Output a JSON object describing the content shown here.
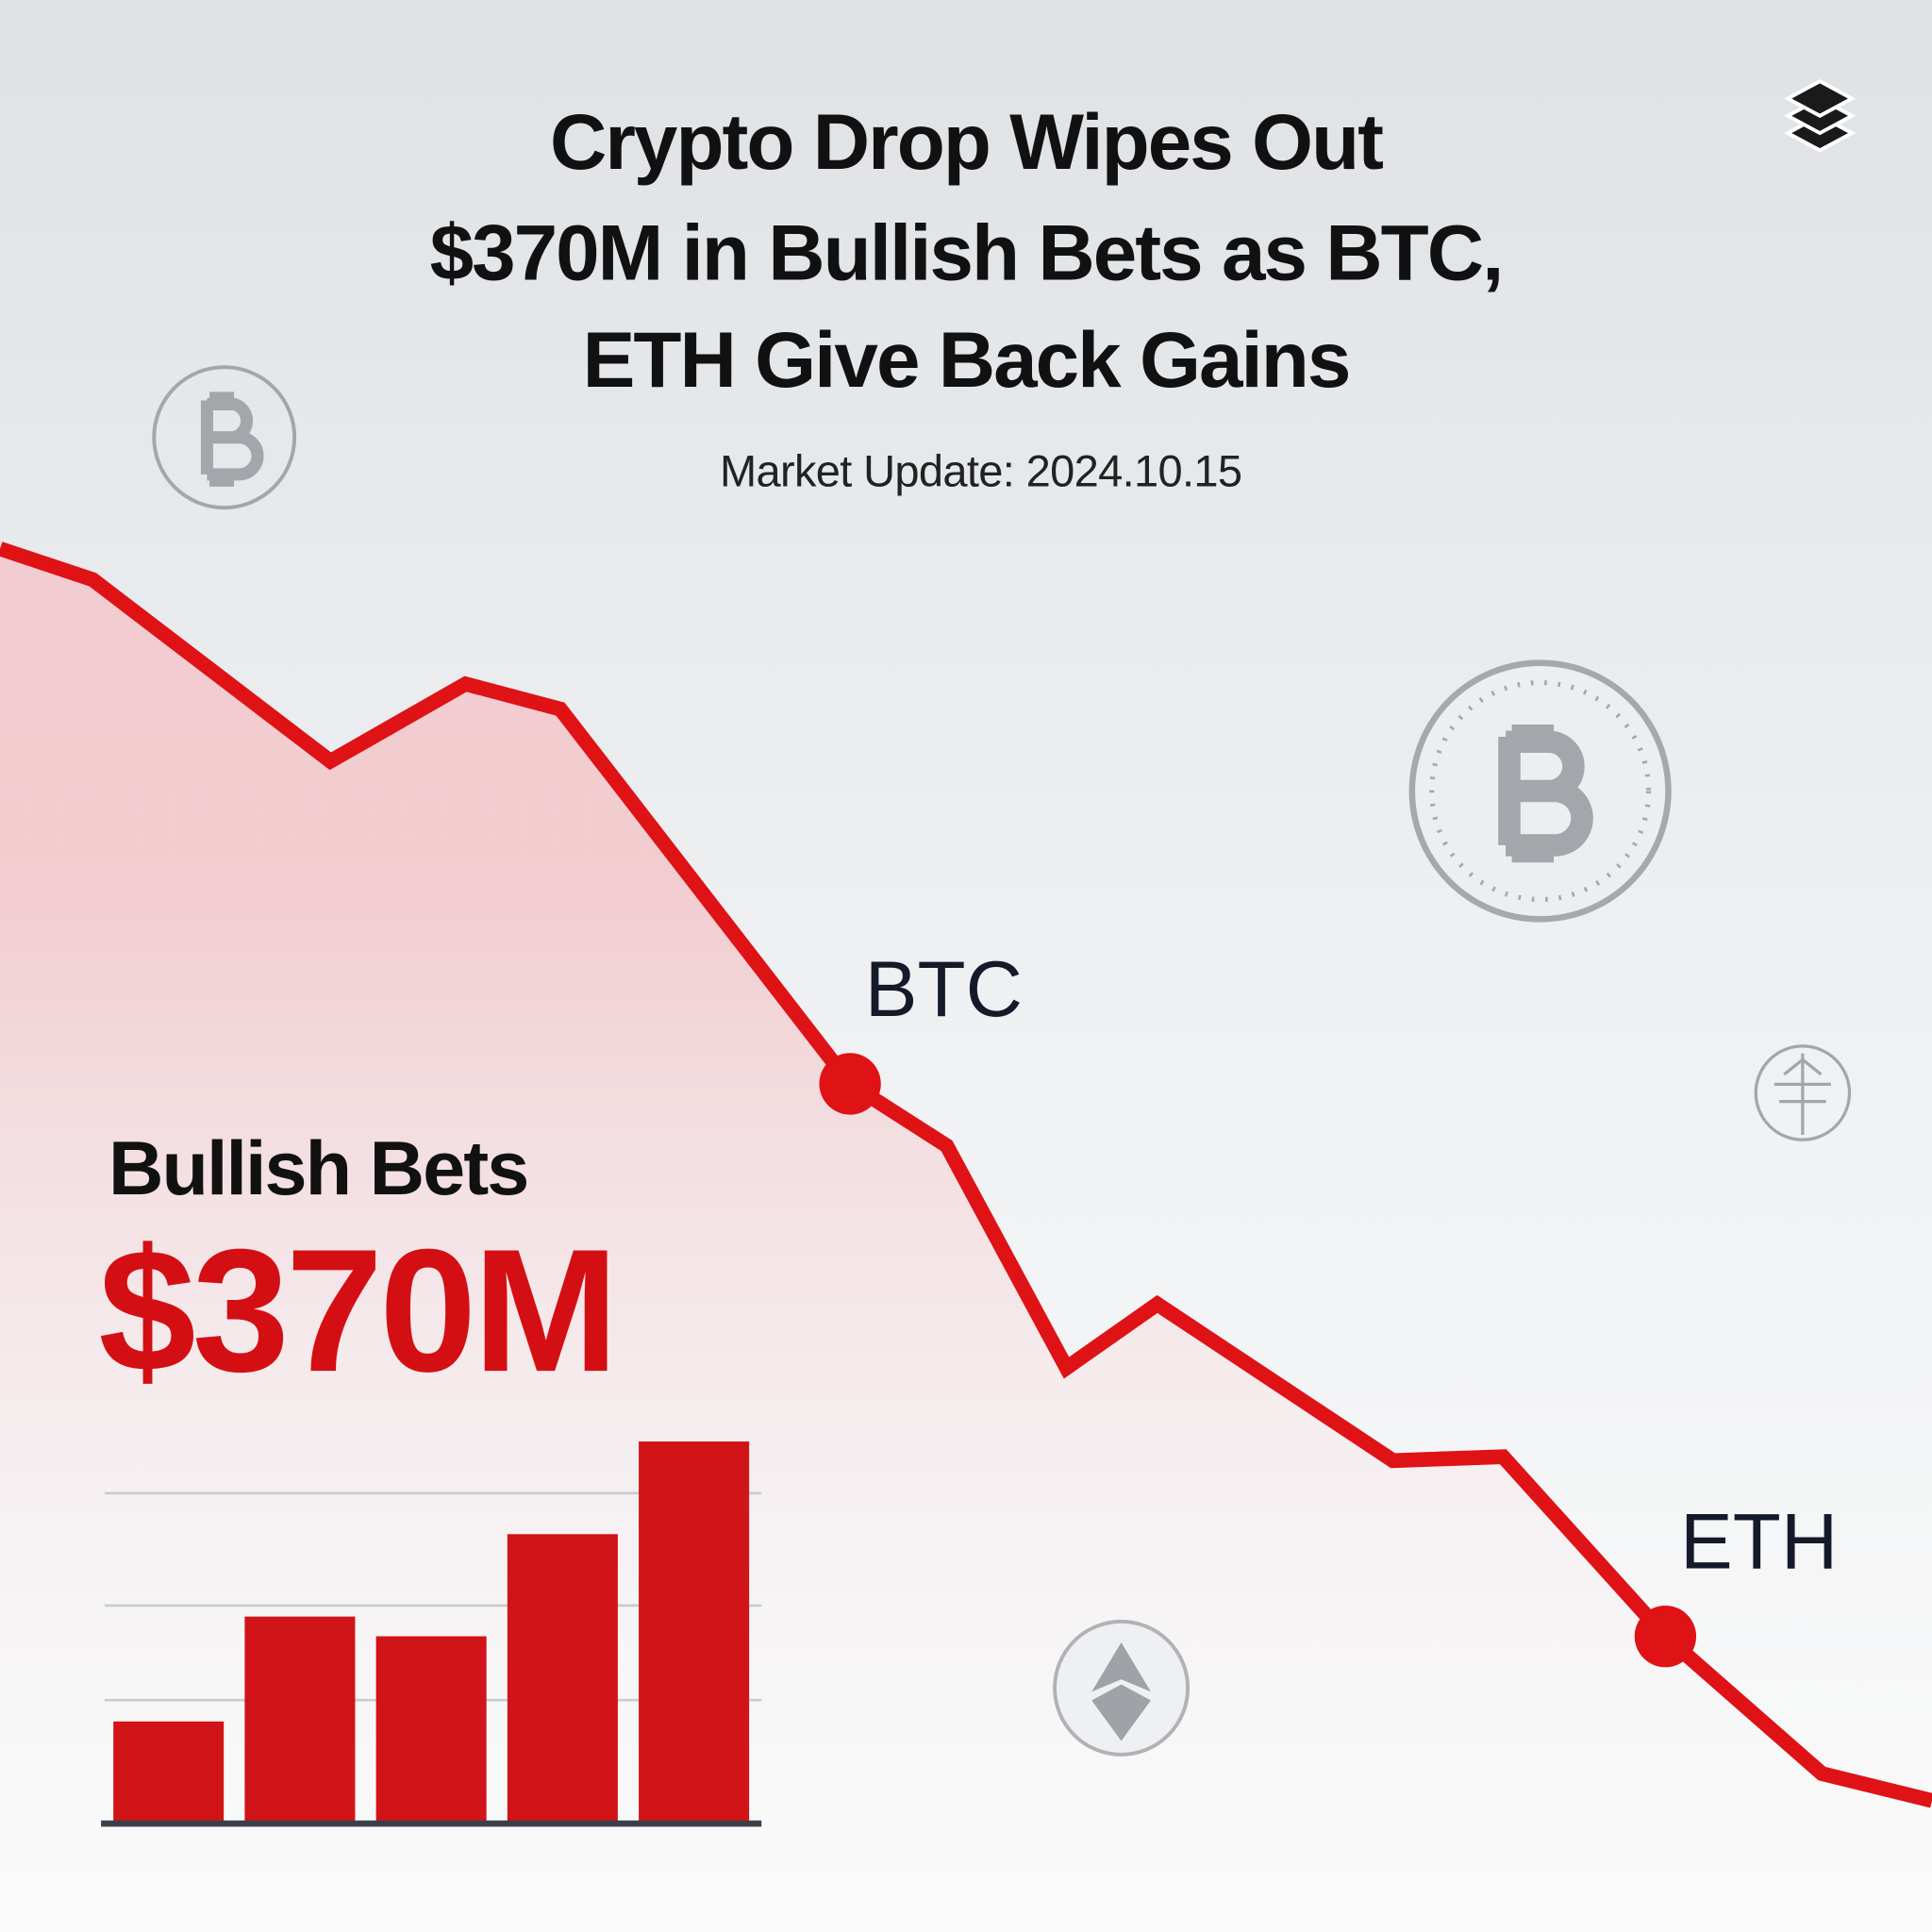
{
  "header": {
    "title": [
      "Crypto Drop Wipes Out",
      "$370M in Bullish Bets as BTC,",
      "ETH Give Back Gains"
    ],
    "subtitle": "Market Update: 2024.10.15"
  },
  "callout": {
    "label": "Bullish Bets",
    "value": "$370M"
  },
  "chart_data": [
    {
      "type": "line",
      "color": "#df1216",
      "x": [
        0,
        4.8,
        17.1,
        24.1,
        29.0,
        44.0,
        49.0,
        55.2,
        59.9,
        72.1,
        77.8,
        86.2,
        94.3,
        100
      ],
      "values": [
        71.6,
        70.0,
        60.6,
        64.6,
        63.3,
        43.9,
        40.7,
        29.2,
        32.5,
        24.4,
        24.6,
        15.3,
        8.2,
        6.8
      ],
      "point_labels": [
        null,
        null,
        null,
        null,
        null,
        "BTC",
        null,
        null,
        null,
        null,
        null,
        "ETH",
        null,
        null
      ],
      "xlim": [
        0,
        100
      ],
      "ylim": [
        0,
        100
      ]
    },
    {
      "type": "bar",
      "color": "#d11417",
      "categories": [
        null,
        null,
        null,
        null,
        null
      ],
      "values": [
        25.9,
        52.5,
        47.5,
        73.4,
        96.9
      ],
      "ylim": [
        0,
        100
      ],
      "grid_values": [
        31.3,
        55.3,
        83.8
      ]
    }
  ]
}
